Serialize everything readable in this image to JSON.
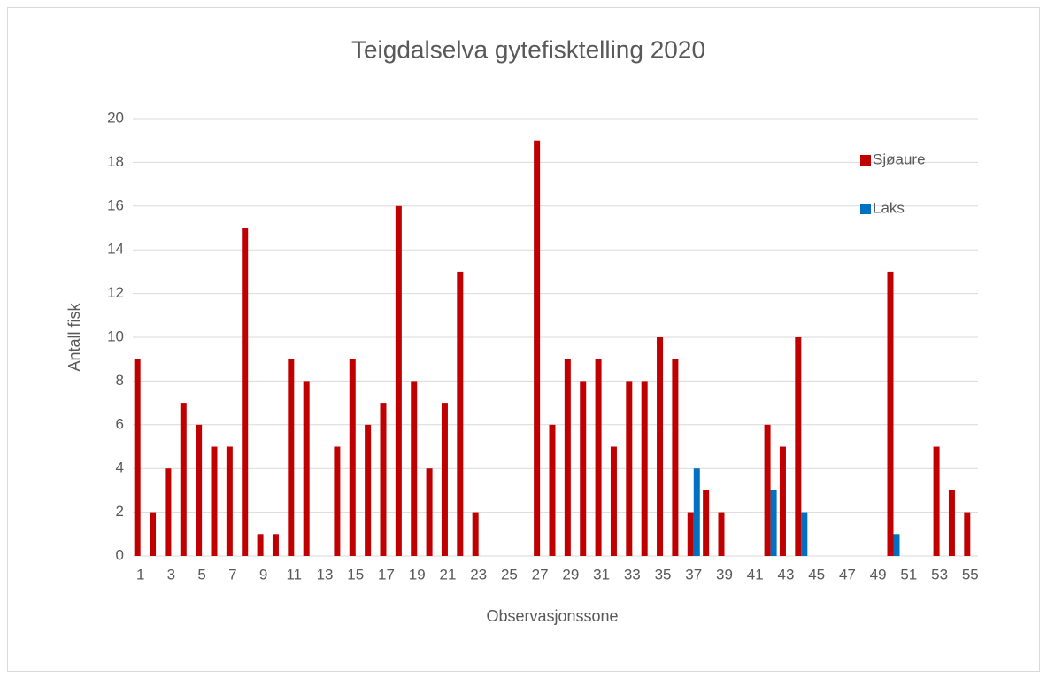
{
  "chart_data": {
    "type": "bar",
    "title": "Teigdalselva gytefisktelling 2020",
    "x_label": "Observasjonssone",
    "y_label": "Antall fisk",
    "categories": [
      "1",
      null,
      "3",
      null,
      "5",
      null,
      "7",
      null,
      "9",
      null,
      "11",
      null,
      "13",
      null,
      "15",
      null,
      "17",
      null,
      "19",
      null,
      "21",
      null,
      "23",
      null,
      "25",
      null,
      "27",
      null,
      "29",
      null,
      "31",
      null,
      "33",
      null,
      "35",
      null,
      "37",
      null,
      "39",
      null,
      "41",
      null,
      "43",
      null,
      "45",
      null,
      "47",
      null,
      "49",
      null,
      "51",
      null,
      "53",
      null,
      "55"
    ],
    "series": [
      {
        "name": "Sjøaure",
        "color": "#c00000",
        "values": [
          9,
          2,
          4,
          7,
          6,
          5,
          5,
          15,
          1,
          1,
          9,
          8,
          0,
          5,
          9,
          6,
          7,
          16,
          8,
          4,
          7,
          13,
          2,
          0,
          0,
          0,
          19,
          6,
          9,
          8,
          9,
          5,
          8,
          8,
          10,
          9,
          2,
          3,
          2,
          0,
          0,
          6,
          5,
          10,
          0,
          0,
          0,
          0,
          0,
          13,
          0,
          0,
          5,
          3,
          2
        ]
      },
      {
        "name": "Laks",
        "color": "#0070c0",
        "values": [
          0,
          0,
          0,
          0,
          0,
          0,
          0,
          0,
          0,
          0,
          0,
          0,
          0,
          0,
          0,
          0,
          0,
          0,
          0,
          0,
          0,
          0,
          0,
          0,
          0,
          0,
          0,
          0,
          0,
          0,
          0,
          0,
          0,
          0,
          0,
          0,
          4,
          0,
          0,
          0,
          0,
          3,
          0,
          2,
          0,
          0,
          0,
          0,
          0,
          1,
          0,
          0,
          0,
          0,
          0
        ]
      }
    ],
    "ylim": [
      0,
      20
    ],
    "yticks": [
      0,
      2,
      4,
      6,
      8,
      10,
      12,
      14,
      16,
      18,
      20
    ],
    "grid": true,
    "legend": "upper right"
  }
}
